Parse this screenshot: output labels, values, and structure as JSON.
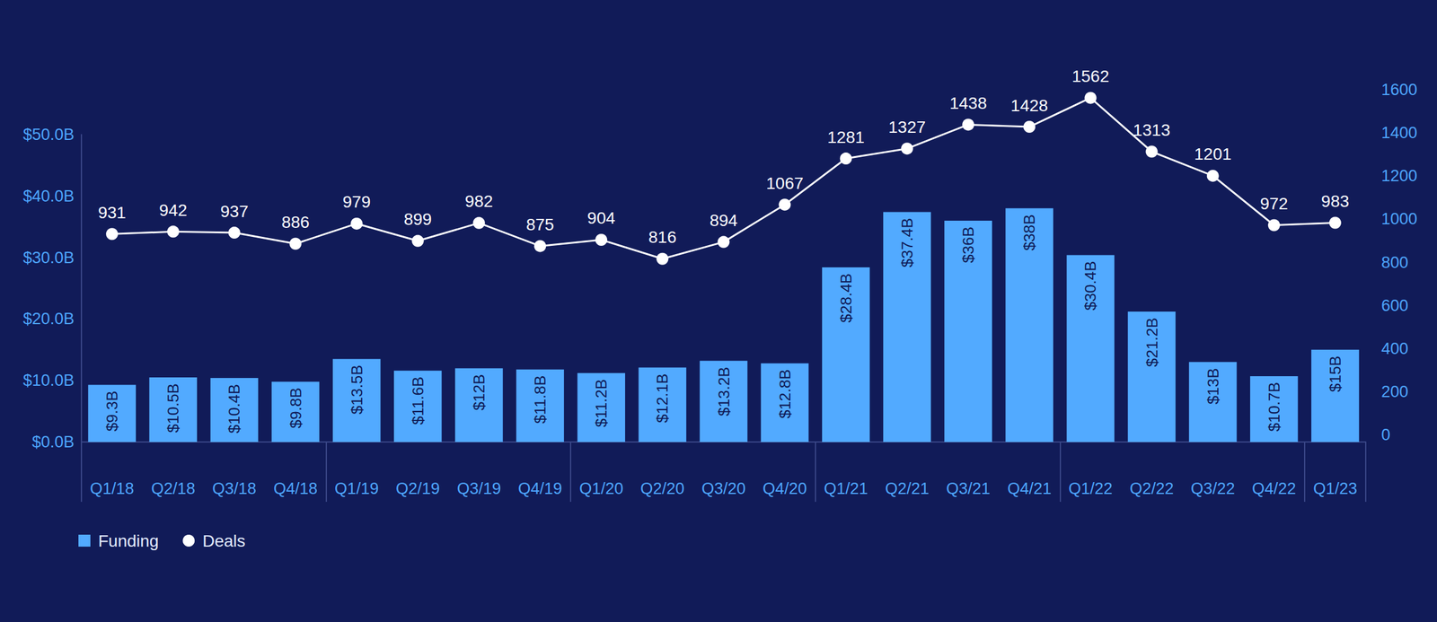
{
  "chart_data": {
    "type": "bar",
    "categories": [
      "Q1/18",
      "Q2/18",
      "Q3/18",
      "Q4/18",
      "Q1/19",
      "Q2/19",
      "Q3/19",
      "Q4/19",
      "Q1/20",
      "Q2/20",
      "Q3/20",
      "Q4/20",
      "Q1/21",
      "Q2/21",
      "Q3/21",
      "Q4/21",
      "Q1/22",
      "Q2/22",
      "Q3/22",
      "Q4/22",
      "Q1/23"
    ],
    "series": [
      {
        "name": "Funding",
        "type": "bar",
        "color": "#52aaff",
        "values": [
          9.3,
          10.5,
          10.4,
          9.8,
          13.5,
          11.6,
          12,
          11.8,
          11.2,
          12.1,
          13.2,
          12.8,
          28.4,
          37.4,
          36,
          38,
          30.4,
          21.2,
          13,
          10.7,
          15
        ],
        "value_labels": [
          "$9.3B",
          "$10.5B",
          "$10.4B",
          "$9.8B",
          "$13.5B",
          "$11.6B",
          "$12B",
          "$11.8B",
          "$11.2B",
          "$12.1B",
          "$13.2B",
          "$12.8B",
          "$28.4B",
          "$37.4B",
          "$36B",
          "$38B",
          "$30.4B",
          "$21.2B",
          "$13B",
          "$10.7B",
          "$15B"
        ]
      },
      {
        "name": "Deals",
        "type": "line",
        "color": "#ffffff",
        "marker": "circle",
        "axis": "y2",
        "values": [
          931,
          942,
          937,
          886,
          979,
          899,
          982,
          875,
          904,
          816,
          894,
          1067,
          1281,
          1327,
          1438,
          1428,
          1562,
          1313,
          1201,
          972,
          983
        ]
      }
    ],
    "ylim": [
      0,
      50
    ],
    "yticks": [
      {
        "value": 0,
        "label": "$0.0B"
      },
      {
        "value": 10,
        "label": "$10.0B"
      },
      {
        "value": 20,
        "label": "$20.0B"
      },
      {
        "value": 30,
        "label": "$30.0B"
      },
      {
        "value": 40,
        "label": "$40.0B"
      },
      {
        "value": 50,
        "label": "$50.0B"
      }
    ],
    "y2lim": [
      0,
      1600
    ],
    "y2ticks": [
      0,
      200,
      400,
      600,
      800,
      1000,
      1200,
      1400,
      1600
    ],
    "data_labels": true,
    "grid": false,
    "legend": "bottom-left"
  }
}
